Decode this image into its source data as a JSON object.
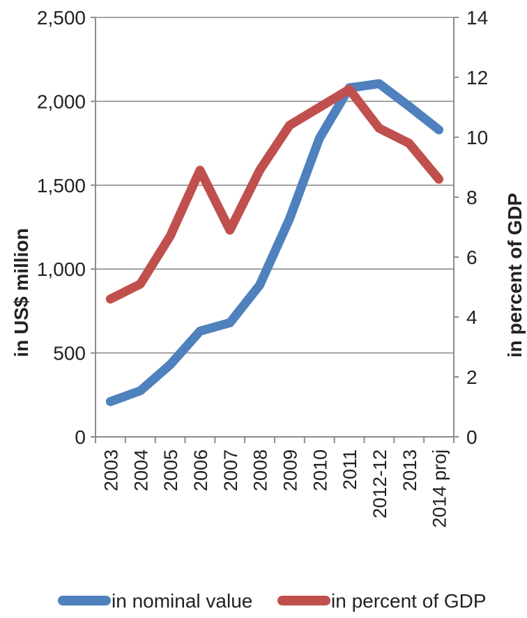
{
  "chart_data": {
    "type": "line",
    "categories": [
      "2003",
      "2004",
      "2005",
      "2006",
      "2007",
      "2008",
      "2009",
      "2010",
      "2011",
      "2012-12",
      "2013",
      "2014 proj"
    ],
    "series": [
      {
        "name": "in nominal value",
        "axis": "left",
        "color": "#4f81bd",
        "values": [
          210,
          275,
          430,
          630,
          680,
          905,
          1300,
          1780,
          2080,
          2105,
          1970,
          1830
        ]
      },
      {
        "name": "in percent of GDP",
        "axis": "right",
        "color": "#c0504d",
        "values": [
          4.6,
          5.1,
          6.7,
          8.9,
          6.9,
          8.9,
          10.4,
          11.0,
          11.6,
          10.3,
          9.8,
          8.6
        ]
      }
    ],
    "ylabel": "in  US$ million",
    "y2label": "in percent of GDP",
    "ylim": [
      0,
      2500
    ],
    "y2lim": [
      0,
      14
    ],
    "yticks": [
      "0",
      "500",
      "1,000",
      "1,500",
      "2,000",
      "2,500"
    ],
    "y2ticks": [
      "0",
      "2",
      "4",
      "6",
      "8",
      "10",
      "12",
      "14"
    ],
    "grid": true,
    "legend_position": "bottom"
  }
}
